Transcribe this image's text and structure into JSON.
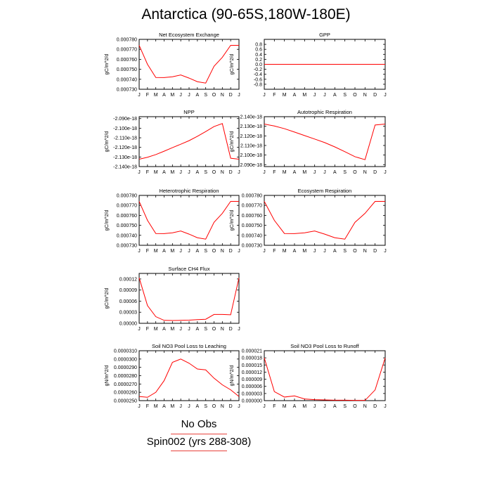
{
  "title": "Antarctica (90-65S,180W-180E)",
  "legend": {
    "items": [
      {
        "label": "No Obs",
        "color": "#e8423c"
      },
      {
        "label": "Spin002 (yrs 288-308)",
        "color": "#e8423c"
      }
    ]
  },
  "colors": {
    "series": "#ff0000",
    "axis": "#000000"
  },
  "months": [
    "J",
    "F",
    "M",
    "A",
    "M",
    "J",
    "J",
    "A",
    "S",
    "O",
    "N",
    "D",
    "J"
  ],
  "chart_data": [
    {
      "type": "line",
      "title": "Net Ecosystem Exchange",
      "ylabel": "gC/m^2/d",
      "ylim": [
        0.00073,
        0.00078
      ],
      "yticks": [
        0.00073,
        0.00074,
        0.00075,
        0.00076,
        0.00077,
        0.00078
      ],
      "yticklabels": [
        "0.000730",
        "0.000740",
        "0.000750",
        "0.000760",
        "0.000770",
        "0.000780"
      ],
      "values": [
        0.000774,
        0.000755,
        0.0007418,
        0.0007417,
        0.0007425,
        0.0007443,
        0.0007412,
        0.0007376,
        0.0007362,
        0.000753,
        0.000762,
        0.000774
      ]
    },
    {
      "type": "line",
      "title": "GPP",
      "ylabel": "gC/m^2/d",
      "ylim": [
        -1.0,
        1.0
      ],
      "yticks": [
        -0.8,
        -0.6,
        -0.4,
        -0.2,
        0.0,
        0.2,
        0.4,
        0.6,
        0.8
      ],
      "yticklabels": [
        "-0.8",
        "-0.6",
        "-0.4",
        "-0.2",
        "0.0",
        "0.2",
        "0.4",
        "0.6",
        "0.8"
      ],
      "values": [
        0,
        0,
        0,
        0,
        0,
        0,
        0,
        0,
        0,
        0,
        0,
        0
      ]
    },
    {
      "type": "line",
      "title": "NPP",
      "ylabel": "gC/m^2/d",
      "ylim": [
        -2.14e-18,
        -2.088e-18
      ],
      "yticks": [
        -2.14e-18,
        -2.13e-18,
        -2.12e-18,
        -2.11e-18,
        -2.1e-18,
        -2.09e-18
      ],
      "yticklabels": [
        "-2.140e-18",
        "-2.130e-18",
        "-2.120e-18",
        "-2.110e-18",
        "-2.100e-18",
        "-2.090e-18"
      ],
      "values": [
        -2.1323e-18,
        -2.1303e-18,
        -2.1275e-18,
        -2.124e-18,
        -2.1203e-18,
        -2.1167e-18,
        -2.113e-18,
        -2.1085e-18,
        -2.1035e-18,
        -2.0983e-18,
        -2.0952e-18,
        -2.1313e-18
      ]
    },
    {
      "type": "line",
      "title": "Autotrophic Respiration",
      "ylabel": "gC/m^2/d",
      "ylim": [
        2.088e-18,
        2.14e-18
      ],
      "yticks": [
        2.09e-18,
        2.1e-18,
        2.11e-18,
        2.12e-18,
        2.13e-18,
        2.14e-18
      ],
      "yticklabels": [
        "2.090e-18",
        "2.100e-18",
        "2.110e-18",
        "2.120e-18",
        "2.130e-18",
        "2.140e-18"
      ],
      "values": [
        2.1323e-18,
        2.1303e-18,
        2.1275e-18,
        2.124e-18,
        2.1203e-18,
        2.1167e-18,
        2.113e-18,
        2.1085e-18,
        2.1035e-18,
        2.0983e-18,
        2.0952e-18,
        2.1313e-18
      ]
    },
    {
      "type": "line",
      "title": "Heterotrophic Respiration",
      "ylabel": "gC/m^2/d",
      "ylim": [
        0.00073,
        0.00078
      ],
      "yticks": [
        0.00073,
        0.00074,
        0.00075,
        0.00076,
        0.00077,
        0.00078
      ],
      "yticklabels": [
        "0.000730",
        "0.000740",
        "0.000750",
        "0.000760",
        "0.000770",
        "0.000780"
      ],
      "values": [
        0.000774,
        0.000755,
        0.0007418,
        0.0007417,
        0.0007425,
        0.0007443,
        0.0007412,
        0.0007376,
        0.0007362,
        0.000753,
        0.000762,
        0.000774
      ]
    },
    {
      "type": "line",
      "title": "Ecosystem Respiration",
      "ylabel": "gC/m^2/d",
      "ylim": [
        0.00073,
        0.00078
      ],
      "yticks": [
        0.00073,
        0.00074,
        0.00075,
        0.00076,
        0.00077,
        0.00078
      ],
      "yticklabels": [
        "0.000730",
        "0.000740",
        "0.000750",
        "0.000760",
        "0.000770",
        "0.000780"
      ],
      "values": [
        0.000774,
        0.000755,
        0.0007418,
        0.0007417,
        0.0007425,
        0.0007443,
        0.0007412,
        0.0007376,
        0.0007362,
        0.000753,
        0.000762,
        0.000774
      ]
    },
    {
      "type": "line",
      "title": "Surface CH4 Flux",
      "ylabel": "gC/m^2/d",
      "ylim": [
        0.0,
        0.000135
      ],
      "yticks": [
        0.0,
        3e-05,
        6e-05,
        9e-05,
        0.00012
      ],
      "yticklabels": [
        "0.00000",
        "0.00003",
        "0.00006",
        "0.00009",
        "0.00012"
      ],
      "values": [
        0.000123,
        4.8e-05,
        1.8e-05,
        8e-06,
        7.5e-06,
        8e-06,
        8.5e-06,
        1e-05,
        1.1e-05,
        2.4e-05,
        2.4e-05,
        2.3e-05
      ]
    },
    {
      "type": "line",
      "title": "Soil NO3 Pool Loss to Leaching",
      "ylabel": "gN/m^2/d",
      "ylim": [
        2.5e-05,
        3.1e-05
      ],
      "yticks": [
        2.5e-05,
        2.6e-05,
        2.7e-05,
        2.8e-05,
        2.9e-05,
        3e-05,
        3.1e-05
      ],
      "yticklabels": [
        "0.0000250",
        "0.0000260",
        "0.0000270",
        "0.0000280",
        "0.0000290",
        "0.0000300",
        "0.0000310"
      ],
      "values": [
        2.55e-05,
        2.54e-05,
        2.6e-05,
        2.74e-05,
        2.96e-05,
        3e-05,
        2.95e-05,
        2.88e-05,
        2.87e-05,
        2.77e-05,
        2.69e-05,
        2.63e-05
      ]
    },
    {
      "type": "line",
      "title": "Soil NO3 Pool Loss to Runoff",
      "ylabel": "gN/m^2/d",
      "ylim": [
        0.0,
        2.1e-05
      ],
      "yticks": [
        0.0,
        3e-06,
        6e-06,
        9e-06,
        1.2e-05,
        1.5e-05,
        1.8e-05,
        2.1e-05
      ],
      "yticklabels": [
        "0.000000",
        "0.000003",
        "0.000006",
        "0.000009",
        "0.000012",
        "0.000015",
        "0.000018",
        "0.000021"
      ],
      "values": [
        1.8e-05,
        3.8e-06,
        1.5e-06,
        2e-06,
        7e-07,
        4e-07,
        3e-07,
        2e-07,
        2e-07,
        1e-07,
        1e-07,
        4.5e-06
      ]
    }
  ]
}
